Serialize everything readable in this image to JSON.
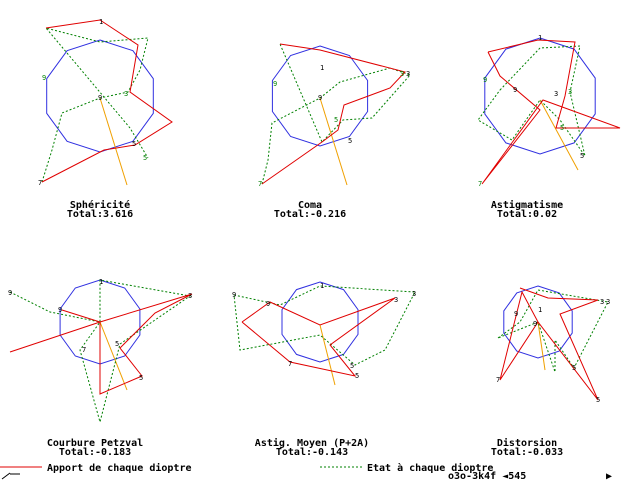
{
  "colors": {
    "red": "#e00000",
    "green": "#008000",
    "blue": "#3030e0",
    "orange": "#f0a000",
    "black": "#000000"
  },
  "legend": {
    "red_label": "Apport de chaque dioptre",
    "green_label": "Etat à chaque dioptre"
  },
  "footer": {
    "code": "o3o-3k4f ◄545",
    "arrow": "▶"
  },
  "panels": [
    {
      "title": "Sphéricité",
      "total": "Total:3.616",
      "red": [
        [
          46,
          28
        ],
        [
          100,
          20
        ],
        [
          138,
          45
        ],
        [
          130,
          92
        ],
        [
          172,
          122
        ],
        [
          135,
          145
        ],
        [
          104,
          150
        ],
        [
          42,
          182
        ]
      ],
      "green": [
        [
          42,
          182
        ],
        [
          52,
          150
        ],
        [
          62,
          113
        ],
        [
          100,
          98
        ],
        [
          128,
          92
        ],
        [
          140,
          70
        ],
        [
          148,
          38
        ],
        [
          100,
          42
        ],
        [
          46,
          28
        ],
        [
          130,
          128
        ],
        [
          148,
          158
        ]
      ],
      "orange": [
        [
          100,
          98
        ],
        [
          127,
          185
        ]
      ],
      "labels": [
        [
          "1",
          99,
          24
        ],
        [
          "9",
          42,
          80
        ],
        [
          "9",
          98,
          100
        ],
        [
          "3",
          124,
          96
        ],
        [
          "5",
          132,
          146
        ],
        [
          "5",
          143,
          160
        ],
        [
          "7",
          38,
          185
        ]
      ]
    },
    {
      "title": "Coma",
      "total": "Total:-0.216",
      "red": [
        [
          280,
          44
        ],
        [
          320,
          50
        ],
        [
          405,
          72
        ],
        [
          390,
          88
        ],
        [
          344,
          105
        ],
        [
          338,
          130
        ],
        [
          322,
          142
        ],
        [
          262,
          184
        ]
      ],
      "green": [
        [
          262,
          184
        ],
        [
          268,
          160
        ],
        [
          272,
          123
        ],
        [
          320,
          98
        ],
        [
          340,
          82
        ],
        [
          390,
          68
        ],
        [
          410,
          75
        ],
        [
          372,
          118
        ],
        [
          343,
          120
        ],
        [
          322,
          142
        ],
        [
          280,
          44
        ]
      ],
      "orange": [
        [
          320,
          98
        ],
        [
          347,
          185
        ]
      ],
      "labels": [
        [
          "1",
          320,
          70
        ],
        [
          "9",
          273,
          86
        ],
        [
          "9",
          318,
          100
        ],
        [
          "3",
          400,
          76
        ],
        [
          "3",
          406,
          76
        ],
        [
          "5",
          334,
          122
        ],
        [
          "5",
          348,
          143
        ],
        [
          "7",
          258,
          186
        ]
      ]
    },
    {
      "title": "Astigmatisme",
      "total": "Total:0.02",
      "red": [
        [
          488,
          52
        ],
        [
          538,
          40
        ],
        [
          575,
          42
        ],
        [
          565,
          96
        ],
        [
          556,
          128
        ],
        [
          620,
          128
        ],
        [
          543,
          100
        ],
        [
          482,
          184
        ],
        [
          540,
          110
        ],
        [
          500,
          76
        ],
        [
          488,
          52
        ]
      ],
      "green": [
        [
          500,
          90
        ],
        [
          540,
          48
        ],
        [
          580,
          46
        ],
        [
          570,
          92
        ],
        [
          585,
          156
        ],
        [
          560,
          120
        ],
        [
          540,
          100
        ],
        [
          512,
          140
        ],
        [
          478,
          120
        ],
        [
          500,
          90
        ]
      ],
      "orange": [
        [
          540,
          100
        ],
        [
          578,
          170
        ]
      ],
      "labels": [
        [
          "1",
          538,
          40
        ],
        [
          "9",
          483,
          82
        ],
        [
          "9",
          513,
          92
        ],
        [
          "3",
          568,
          94
        ],
        [
          "3",
          554,
          96
        ],
        [
          "5",
          560,
          130
        ],
        [
          "5",
          580,
          158
        ],
        [
          "7",
          478,
          186
        ]
      ]
    },
    {
      "title": "Courbure Petzval",
      "total": "Total:-0.183",
      "red": [
        [
          10,
          352
        ],
        [
          100,
          322
        ],
        [
          192,
          294
        ],
        [
          155,
          313
        ],
        [
          120,
          348
        ],
        [
          142,
          376
        ],
        [
          100,
          394
        ],
        [
          100,
          322
        ],
        [
          62,
          310
        ],
        [
          100,
          322
        ]
      ],
      "green": [
        [
          10,
          292
        ],
        [
          50,
          312
        ],
        [
          100,
          322
        ],
        [
          100,
          280
        ],
        [
          190,
          296
        ],
        [
          120,
          344
        ],
        [
          100,
          422
        ],
        [
          80,
          350
        ],
        [
          100,
          322
        ]
      ],
      "orange": [
        [
          100,
          322
        ],
        [
          127,
          390
        ]
      ],
      "labels": [
        [
          "1",
          99,
          284
        ],
        [
          "9",
          8,
          295
        ],
        [
          "9",
          58,
          312
        ],
        [
          "3",
          188,
          298
        ],
        [
          "5",
          115,
          346
        ],
        [
          "5",
          139,
          380
        ],
        [
          "7",
          82,
          352
        ]
      ]
    },
    {
      "title": "Astig. Moyen (P+2A)",
      "total": "Total:-0.143",
      "red": [
        [
          242,
          322
        ],
        [
          270,
          302
        ],
        [
          320,
          325
        ],
        [
          395,
          298
        ],
        [
          330,
          345
        ],
        [
          355,
          376
        ],
        [
          290,
          362
        ],
        [
          242,
          322
        ]
      ],
      "green": [
        [
          234,
          295
        ],
        [
          280,
          305
        ],
        [
          320,
          286
        ],
        [
          415,
          292
        ],
        [
          385,
          350
        ],
        [
          355,
          365
        ],
        [
          320,
          335
        ],
        [
          240,
          350
        ],
        [
          234,
          295
        ]
      ],
      "orange": [
        [
          320,
          325
        ],
        [
          335,
          385
        ]
      ],
      "labels": [
        [
          "1",
          320,
          288
        ],
        [
          "9",
          232,
          297
        ],
        [
          "9",
          266,
          306
        ],
        [
          "3",
          394,
          302
        ],
        [
          "3",
          412,
          296
        ],
        [
          "5",
          350,
          368
        ],
        [
          "5",
          355,
          378
        ],
        [
          "7",
          288,
          366
        ]
      ]
    },
    {
      "title": "Distorsion",
      "total": "Total:-0.033",
      "red": [
        [
          520,
          288
        ],
        [
          548,
          298
        ],
        [
          598,
          300
        ],
        [
          560,
          314
        ],
        [
          598,
          400
        ],
        [
          538,
          322
        ],
        [
          500,
          380
        ],
        [
          522,
          292
        ],
        [
          538,
          322
        ]
      ],
      "green": [
        [
          498,
          338
        ],
        [
          520,
          322
        ],
        [
          538,
          290
        ],
        [
          608,
          302
        ],
        [
          574,
          368
        ],
        [
          555,
          340
        ],
        [
          555,
          372
        ],
        [
          538,
          322
        ],
        [
          498,
          338
        ]
      ],
      "orange": [
        [
          538,
          322
        ],
        [
          545,
          370
        ]
      ],
      "labels": [
        [
          "1",
          538,
          312
        ],
        [
          "9",
          514,
          316
        ],
        [
          "9",
          533,
          326
        ],
        [
          "3",
          600,
          304
        ],
        [
          "3",
          606,
          304
        ],
        [
          "5",
          572,
          370
        ],
        [
          "5",
          596,
          402
        ],
        [
          "7",
          496,
          382
        ]
      ]
    }
  ]
}
